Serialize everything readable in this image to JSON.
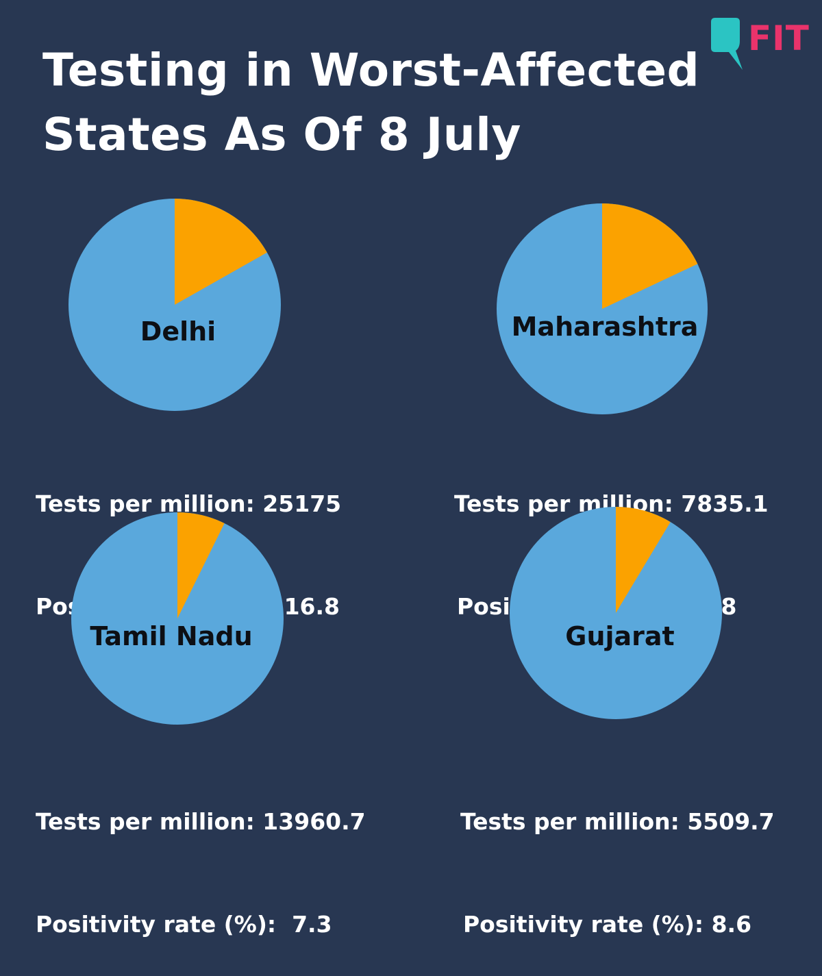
{
  "header": {
    "title_line1": "Testing in Worst-Affected",
    "title_line2": "States As Of 8 July",
    "logo_text": "FIT"
  },
  "colors": {
    "background": "#283752",
    "pie_main": "#5aa8dc",
    "pie_slice": "#fba200",
    "logo_teal": "#2bc4c3",
    "logo_pink": "#e9336b"
  },
  "chart_data": [
    {
      "type": "pie",
      "label": "Delhi",
      "tests_text": "Tests per million: 25175",
      "positivity_text": "Positivity rate (%): 16.8",
      "tests_per_million": 25175,
      "positivity_rate": 16.8
    },
    {
      "type": "pie",
      "label": "Maharashtra",
      "tests_text": "Tests per million: 7835.1",
      "positivity_text": "Positivity rate (%): 18",
      "tests_per_million": 7835.1,
      "positivity_rate": 18
    },
    {
      "type": "pie",
      "label": "Tamil Nadu",
      "tests_text": "Tests per million: 13960.7",
      "positivity_text": "Positivity rate (%):  7.3",
      "tests_per_million": 13960.7,
      "positivity_rate": 7.3
    },
    {
      "type": "pie",
      "label": "Gujarat",
      "tests_text": "Tests per million: 5509.7",
      "positivity_text": "Positivity rate (%): 8.6",
      "tests_per_million": 5509.7,
      "positivity_rate": 8.6
    }
  ]
}
